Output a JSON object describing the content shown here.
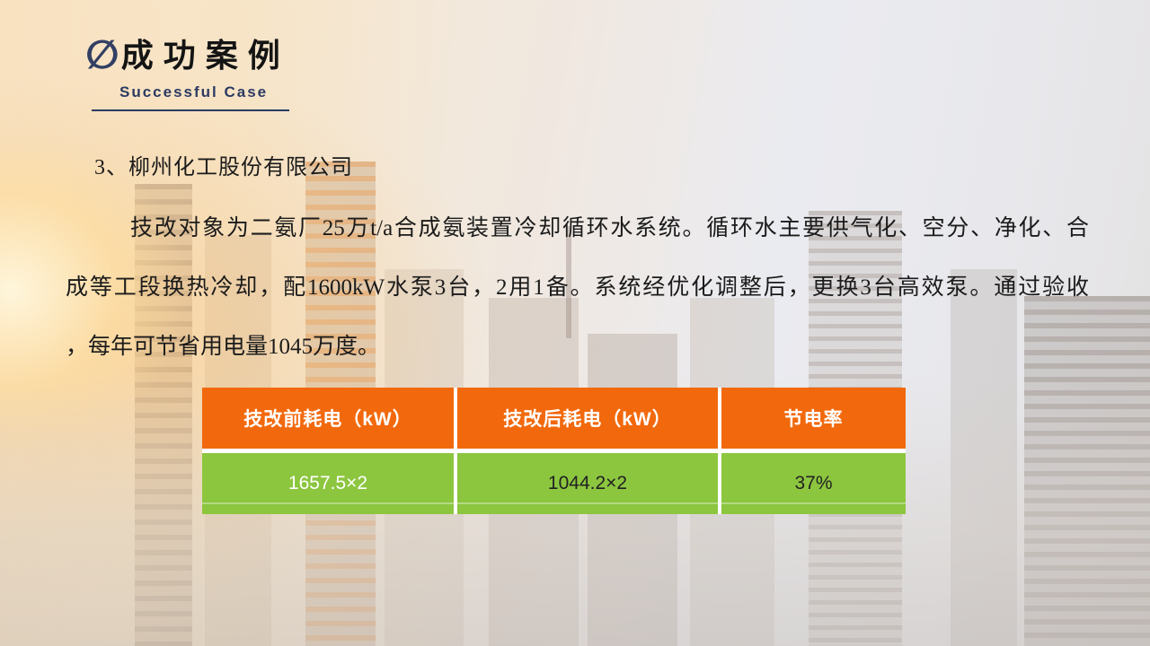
{
  "slide": {
    "header": {
      "icon_glyph": "∅",
      "title": "成功案例",
      "subtitle": "Successful Case"
    },
    "section": {
      "heading": "3、柳州化工股份有限公司",
      "paragraph_lines": [
        "技改对象为二氨厂25万t/a合成氨装置冷却循环水系统。循环水主要供气化、空分、净化、合",
        "成等工段换热冷却，配1600kW水泵3台，2用1备。系统经优化调整后，更换3台高效泵。通过验收",
        "，每年可节省用电量1045万度。"
      ]
    },
    "table": {
      "headers": [
        "技改前耗电（kW）",
        "技改后耗电（kW）",
        "节电率"
      ],
      "rows": [
        [
          "1657.5×2",
          "1044.2×2",
          "37%"
        ]
      ]
    },
    "colors": {
      "accent_orange": "#F2690D",
      "accent_green": "#8CC63F",
      "title_navy": "#2C3A62"
    }
  }
}
